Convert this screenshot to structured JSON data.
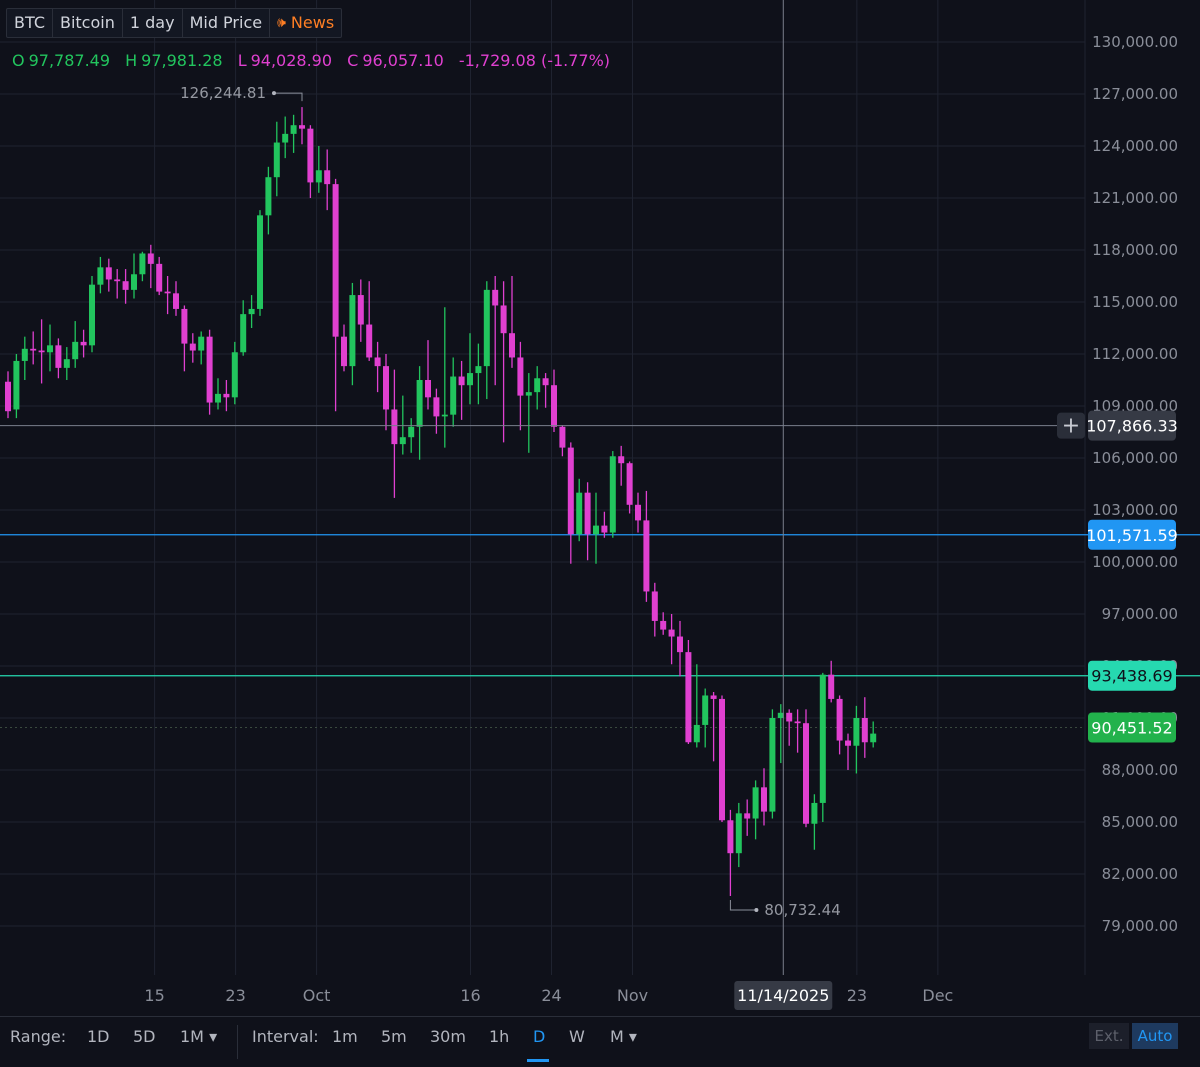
{
  "header": {
    "symbol": "BTC",
    "name": "Bitcoin",
    "interval": "1 day",
    "price_type": "Mid Price",
    "news_label": "News"
  },
  "ohlc": {
    "o_label": "O",
    "o": "97,787.49",
    "h_label": "H",
    "h": "97,981.28",
    "l_label": "L",
    "l": "94,028.90",
    "c_label": "C",
    "c": "96,057.10",
    "change": "-1,729.08 (-1.77%)"
  },
  "crosshair": {
    "price_label": "107,866.33",
    "date_label": "11/14/2025"
  },
  "price_labels": {
    "blue_line": "101,571.59",
    "teal_line": "93,438.69",
    "last_price": "90,451.52"
  },
  "annotations": {
    "high": "126,244.81",
    "low": "80,732.44"
  },
  "bottom": {
    "range_label": "Range:",
    "range_options": [
      "1D",
      "5D",
      "1M ▾"
    ],
    "interval_label": "Interval:",
    "interval_options": [
      "1m",
      "5m",
      "30m",
      "1h",
      "D",
      "W",
      "M ▾"
    ],
    "selected_interval": "D",
    "ext_label": "Ext.",
    "auto_label": "Auto"
  },
  "colors": {
    "up": "#22c55e",
    "down": "#e040d0",
    "background": "#0f111a",
    "blue_line": "#2196f3",
    "teal_line": "#26d9b0",
    "grid": "#1f2330"
  },
  "chart_data": {
    "type": "candlestick",
    "y_ticks": [
      "130,000.00",
      "127,000.00",
      "124,000.00",
      "121,000.00",
      "118,000.00",
      "115,000.00",
      "112,000.00",
      "109,000.00",
      "106,000.00",
      "103,000.00",
      "100,000.00",
      "97,000.00",
      "94,000.00",
      "91,000.00",
      "88,000.00",
      "85,000.00",
      "82,000.00",
      "79,000.00"
    ],
    "ylim": [
      77000,
      131500
    ],
    "x_ticks": [
      "15",
      "23",
      "Oct",
      "16",
      "24",
      "Nov",
      "23",
      "Dec"
    ],
    "horizontal_lines": [
      101571.59,
      93438.69,
      90451.52
    ],
    "crosshair_price": 107866.33,
    "candles": [
      [
        110400,
        108700,
        111000,
        108300
      ],
      [
        108800,
        111600,
        112000,
        108300
      ],
      [
        111600,
        112300,
        113000,
        110500
      ],
      [
        112300,
        112200,
        113300,
        111400
      ],
      [
        112200,
        112100,
        114000,
        110300
      ],
      [
        112100,
        112500,
        113700,
        111000
      ],
      [
        112500,
        111200,
        112900,
        110600
      ],
      [
        111200,
        111700,
        112400,
        110500
      ],
      [
        111700,
        112700,
        113900,
        111200
      ],
      [
        112700,
        112500,
        113400,
        111800
      ],
      [
        112500,
        116000,
        116500,
        112100
      ],
      [
        116000,
        117000,
        117600,
        115500
      ],
      [
        117000,
        116300,
        117500,
        115600
      ],
      [
        116300,
        116200,
        116900,
        115200
      ],
      [
        116200,
        115700,
        116900,
        114900
      ],
      [
        115700,
        116600,
        117800,
        115200
      ],
      [
        116600,
        117800,
        117900,
        116200
      ],
      [
        117800,
        117200,
        118300,
        115800
      ],
      [
        117200,
        115600,
        117600,
        115400
      ],
      [
        115600,
        115500,
        116500,
        114300
      ],
      [
        115500,
        114600,
        116200,
        114200
      ],
      [
        114600,
        112600,
        114800,
        111000
      ],
      [
        112600,
        112200,
        113200,
        111500
      ],
      [
        112200,
        113000,
        113300,
        111400
      ],
      [
        113000,
        109200,
        113400,
        108500
      ],
      [
        109200,
        109700,
        110600,
        108800
      ],
      [
        109700,
        109500,
        110500,
        108700
      ],
      [
        109500,
        112100,
        112700,
        109100
      ],
      [
        112100,
        114300,
        115100,
        111900
      ],
      [
        114300,
        114600,
        115400,
        113500
      ],
      [
        114600,
        120000,
        120300,
        114200
      ],
      [
        120000,
        122200,
        122800,
        118900
      ],
      [
        122200,
        124200,
        125400,
        121100
      ],
      [
        124200,
        124700,
        125700,
        123300
      ],
      [
        124700,
        125200,
        125800,
        123600
      ],
      [
        125200,
        125000,
        126245,
        124100
      ],
      [
        125000,
        121900,
        125200,
        121000
      ],
      [
        121900,
        122600,
        124000,
        121300
      ],
      [
        122600,
        121800,
        123800,
        120300
      ],
      [
        121800,
        113000,
        122100,
        108700
      ],
      [
        113000,
        111300,
        113700,
        111000
      ],
      [
        111300,
        115400,
        116100,
        110200
      ],
      [
        115400,
        113700,
        116300,
        112700
      ],
      [
        113700,
        111800,
        116200,
        111600
      ],
      [
        111800,
        111300,
        112700,
        109800
      ],
      [
        111300,
        108800,
        112000,
        107600
      ],
      [
        108800,
        106800,
        111100,
        103700
      ],
      [
        106800,
        107200,
        109600,
        106200
      ],
      [
        107200,
        107800,
        108300,
        106300
      ],
      [
        107800,
        110500,
        111300,
        105900
      ],
      [
        110500,
        109500,
        112800,
        108800
      ],
      [
        109500,
        108400,
        110000,
        107400
      ],
      [
        108400,
        108500,
        114700,
        106600
      ],
      [
        108500,
        110700,
        111800,
        107800
      ],
      [
        110700,
        110200,
        111600,
        108200
      ],
      [
        110200,
        110900,
        113200,
        109100
      ],
      [
        110900,
        111300,
        112600,
        109100
      ],
      [
        111300,
        115700,
        116200,
        109400
      ],
      [
        115700,
        114800,
        116500,
        110200
      ],
      [
        114800,
        113200,
        116200,
        106900
      ],
      [
        113200,
        111800,
        116500,
        111200
      ],
      [
        111800,
        109600,
        112700,
        107600
      ],
      [
        109600,
        109800,
        110900,
        106300
      ],
      [
        109800,
        110600,
        111300,
        108800
      ],
      [
        110600,
        110200,
        110900,
        108900
      ],
      [
        110200,
        107800,
        111100,
        107500
      ],
      [
        107800,
        106600,
        107900,
        106100
      ],
      [
        106600,
        101600,
        106900,
        99900
      ],
      [
        101600,
        104000,
        104800,
        101200
      ],
      [
        104000,
        101600,
        104600,
        100100
      ],
      [
        101600,
        102100,
        104000,
        99900
      ],
      [
        102100,
        101700,
        102900,
        101400
      ],
      [
        101700,
        106100,
        106400,
        101400
      ],
      [
        106100,
        105700,
        106700,
        104400
      ],
      [
        105700,
        103300,
        105800,
        102800
      ],
      [
        103300,
        102400,
        104000,
        101700
      ],
      [
        102400,
        98300,
        104100,
        97700
      ],
      [
        98300,
        96600,
        98800,
        95700
      ],
      [
        96600,
        96100,
        97100,
        95800
      ],
      [
        96100,
        95700,
        97000,
        94100
      ],
      [
        95700,
        94800,
        96600,
        93400
      ],
      [
        94800,
        89600,
        95500,
        89500
      ],
      [
        89600,
        90600,
        94100,
        89300
      ],
      [
        90600,
        92300,
        92700,
        89300
      ],
      [
        92300,
        92100,
        92500,
        88500
      ],
      [
        92100,
        85100,
        92300,
        85000
      ],
      [
        85100,
        83200,
        85700,
        80732
      ],
      [
        83200,
        85500,
        86100,
        82400
      ],
      [
        85500,
        85200,
        86300,
        84200
      ],
      [
        85200,
        87000,
        87400,
        84000
      ],
      [
        87000,
        85600,
        88100,
        84800
      ],
      [
        85600,
        91000,
        91500,
        85200
      ],
      [
        91000,
        91300,
        91800,
        88400
      ],
      [
        91300,
        90800,
        91500,
        89400
      ],
      [
        90800,
        90700,
        91500,
        89000
      ],
      [
        90700,
        84900,
        91500,
        84700
      ],
      [
        84900,
        86100,
        86600,
        83400
      ],
      [
        86100,
        93500,
        93600,
        85000
      ],
      [
        93500,
        92100,
        94300,
        91900
      ],
      [
        92100,
        89700,
        92300,
        88900
      ],
      [
        89700,
        89400,
        90100,
        88000
      ],
      [
        89400,
        91000,
        91700,
        87800
      ],
      [
        91000,
        89600,
        92200,
        88700
      ],
      [
        89600,
        90100,
        90800,
        89300
      ]
    ]
  }
}
